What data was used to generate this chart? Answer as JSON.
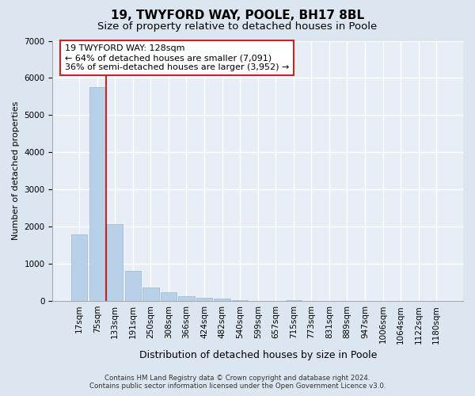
{
  "title1": "19, TWYFORD WAY, POOLE, BH17 8BL",
  "title2": "Size of property relative to detached houses in Poole",
  "xlabel": "Distribution of detached houses by size in Poole",
  "ylabel": "Number of detached properties",
  "footnote1": "Contains HM Land Registry data © Crown copyright and database right 2024.",
  "footnote2": "Contains public sector information licensed under the Open Government Licence v3.0.",
  "bar_labels": [
    "17sqm",
    "75sqm",
    "133sqm",
    "191sqm",
    "250sqm",
    "308sqm",
    "366sqm",
    "424sqm",
    "482sqm",
    "540sqm",
    "599sqm",
    "657sqm",
    "715sqm",
    "773sqm",
    "831sqm",
    "889sqm",
    "947sqm",
    "1006sqm",
    "1064sqm",
    "1122sqm",
    "1180sqm"
  ],
  "bar_values": [
    1800,
    5750,
    2060,
    820,
    370,
    230,
    130,
    80,
    65,
    30,
    0,
    0,
    30,
    0,
    0,
    0,
    0,
    0,
    0,
    0,
    0
  ],
  "bar_color": "#b8d0e8",
  "bar_edge_color": "#9ab8d4",
  "vline_x": 1.5,
  "vline_color": "#cc2222",
  "annotation_line1": "19 TWYFORD WAY: 128sqm",
  "annotation_line2": "← 64% of detached houses are smaller (7,091)",
  "annotation_line3": "36% of semi-detached houses are larger (3,952) →",
  "annotation_box_color": "#ffffff",
  "annotation_box_edgecolor": "#cc2222",
  "ylim": [
    0,
    7000
  ],
  "yticks": [
    0,
    1000,
    2000,
    3000,
    4000,
    5000,
    6000,
    7000
  ],
  "bg_color": "#dce6f0",
  "plot_bg_color": "#e8eef6",
  "grid_color": "#ffffff",
  "title1_fontsize": 11,
  "title2_fontsize": 9.5,
  "xlabel_fontsize": 9,
  "ylabel_fontsize": 8,
  "tick_fontsize": 7.5,
  "annot_fontsize": 8
}
